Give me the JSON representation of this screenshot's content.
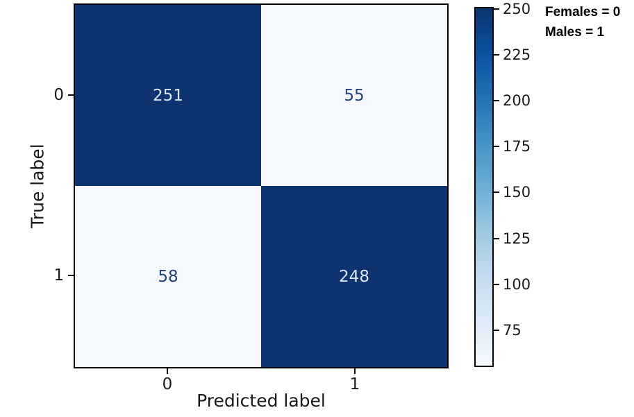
{
  "chart_data": {
    "type": "heatmap",
    "subtype": "confusion-matrix",
    "xlabel": "Predicted label",
    "ylabel": "True label",
    "x_categories": [
      "0",
      "1"
    ],
    "y_categories": [
      "0",
      "1"
    ],
    "matrix": [
      [
        251,
        55
      ],
      [
        58,
        248
      ]
    ],
    "colormap": "Blues",
    "vmin": 55,
    "vmax": 251,
    "colorbar_ticks": [
      250,
      225,
      200,
      175,
      150,
      125,
      100,
      75
    ],
    "grid": false,
    "legend_position": "top-right"
  },
  "annotation": {
    "line1": "Females = 0",
    "line2": "Males = 1"
  },
  "colors": {
    "dark_cell": "#0d3470",
    "light_cell": "#f5f9fd",
    "dark_text": "#20427c",
    "light_text": "#d9e6f4",
    "axis": "#000000"
  }
}
